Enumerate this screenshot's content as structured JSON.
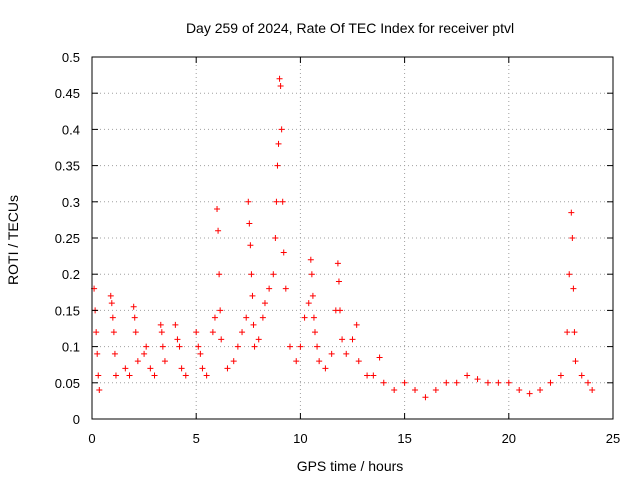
{
  "chart_data": {
    "type": "scatter",
    "title": "Day 259 of 2024, Rate Of TEC Index for receiver ptvl",
    "xlabel": "GPS time / hours",
    "ylabel": "ROTI / TECUs",
    "xlim": [
      0,
      25
    ],
    "ylim": [
      0,
      0.5
    ],
    "xticks": [
      "0",
      "5",
      "10",
      "15",
      "20",
      "25"
    ],
    "yticks": [
      "0",
      "0.05",
      "0.1",
      "0.15",
      "0.2",
      "0.25",
      "0.3",
      "0.35",
      "0.4",
      "0.45",
      "0.5"
    ],
    "grid": true,
    "marker": "+",
    "series": [
      {
        "name": "ROTI",
        "color": "#ff0000",
        "x": [
          0.1,
          0.15,
          0.2,
          0.25,
          0.3,
          0.35,
          0.9,
          0.95,
          1.0,
          1.05,
          1.1,
          1.15,
          1.6,
          1.8,
          2.0,
          2.05,
          2.1,
          2.2,
          2.5,
          2.6,
          2.8,
          3.0,
          3.3,
          3.35,
          3.4,
          3.5,
          4.0,
          4.1,
          4.2,
          4.3,
          4.5,
          5.0,
          5.1,
          5.2,
          5.3,
          5.5,
          5.8,
          5.9,
          6.0,
          6.05,
          6.1,
          6.15,
          6.2,
          6.5,
          6.8,
          7.0,
          7.2,
          7.4,
          7.5,
          7.55,
          7.6,
          7.65,
          7.7,
          7.75,
          7.8,
          8.0,
          8.2,
          8.3,
          8.5,
          8.7,
          8.8,
          8.85,
          8.9,
          8.95,
          9.0,
          9.05,
          9.1,
          9.15,
          9.2,
          9.3,
          9.5,
          9.8,
          10.0,
          10.2,
          10.4,
          10.5,
          10.55,
          10.6,
          10.65,
          10.7,
          10.8,
          10.9,
          11.2,
          11.5,
          11.7,
          11.8,
          11.85,
          11.9,
          12.0,
          12.2,
          12.5,
          12.7,
          12.8,
          13.2,
          13.5,
          13.8,
          14.0,
          14.5,
          15.0,
          15.5,
          16.0,
          16.5,
          17.0,
          17.5,
          18.0,
          18.5,
          19.0,
          19.5,
          20.0,
          20.5,
          21.0,
          21.5,
          22.0,
          22.5,
          22.8,
          22.9,
          23.0,
          23.05,
          23.1,
          23.15,
          23.2,
          23.5,
          23.8,
          24.0
        ],
        "y": [
          0.18,
          0.15,
          0.12,
          0.09,
          0.06,
          0.04,
          0.17,
          0.16,
          0.14,
          0.12,
          0.09,
          0.06,
          0.07,
          0.06,
          0.155,
          0.14,
          0.12,
          0.08,
          0.09,
          0.1,
          0.07,
          0.06,
          0.13,
          0.12,
          0.1,
          0.08,
          0.13,
          0.11,
          0.1,
          0.07,
          0.06,
          0.12,
          0.1,
          0.09,
          0.07,
          0.06,
          0.12,
          0.14,
          0.29,
          0.26,
          0.2,
          0.15,
          0.11,
          0.07,
          0.08,
          0.1,
          0.12,
          0.14,
          0.3,
          0.27,
          0.24,
          0.2,
          0.17,
          0.13,
          0.1,
          0.11,
          0.14,
          0.16,
          0.18,
          0.2,
          0.25,
          0.3,
          0.35,
          0.38,
          0.47,
          0.46,
          0.4,
          0.3,
          0.23,
          0.18,
          0.1,
          0.08,
          0.1,
          0.14,
          0.16,
          0.22,
          0.2,
          0.17,
          0.14,
          0.12,
          0.1,
          0.08,
          0.07,
          0.09,
          0.15,
          0.215,
          0.19,
          0.15,
          0.11,
          0.09,
          0.11,
          0.13,
          0.08,
          0.06,
          0.06,
          0.085,
          0.05,
          0.04,
          0.05,
          0.04,
          0.03,
          0.04,
          0.05,
          0.05,
          0.06,
          0.055,
          0.05,
          0.05,
          0.05,
          0.04,
          0.035,
          0.04,
          0.05,
          0.06,
          0.12,
          0.2,
          0.285,
          0.25,
          0.18,
          0.12,
          0.08,
          0.06,
          0.05,
          0.04
        ]
      }
    ]
  }
}
